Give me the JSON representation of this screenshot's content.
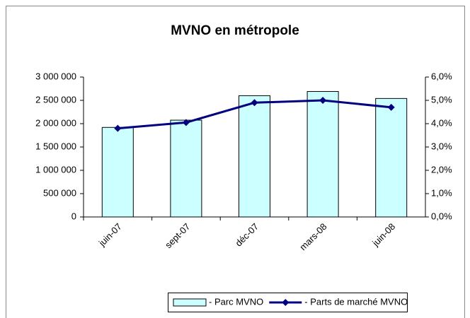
{
  "chart_data": {
    "type": "bar_line",
    "title": "MVNO en métropole",
    "categories": [
      "juin-07",
      "sept-07",
      "déc-07",
      "mars-08",
      "juin-08"
    ],
    "series": [
      {
        "name": "- Parc MVNO",
        "type": "bar",
        "color": "#ccffff",
        "values": [
          1920000,
          2075000,
          2600000,
          2690000,
          2540000
        ]
      },
      {
        "name": "- Parts de marché MVNO",
        "type": "line",
        "axis": "y2",
        "color": "#000080",
        "values": [
          3.8,
          4.05,
          4.9,
          5.0,
          4.7
        ]
      }
    ],
    "ylim": [
      0,
      3000000
    ],
    "yticks": [
      0,
      {
        "value": 500000,
        "label": "500 000"
      },
      {
        "value": 1000000,
        "label": "1 000 000"
      },
      {
        "value": 1500000,
        "label": "1 500 000"
      },
      {
        "value": 2000000,
        "label": "2 000 000"
      },
      {
        "value": 2500000,
        "label": "2 500 000"
      },
      {
        "value": 3000000,
        "label": "3 000 000"
      }
    ],
    "y2lim": [
      0,
      6
    ],
    "y2ticks": [
      {
        "value": 0,
        "label": "0,0%"
      },
      {
        "value": 1,
        "label": "1,0%"
      },
      {
        "value": 2,
        "label": "2,0%"
      },
      {
        "value": 3,
        "label": "3,0%"
      },
      {
        "value": 4,
        "label": "4,0%"
      },
      {
        "value": 5,
        "label": "5,0%"
      },
      {
        "value": 6,
        "label": "6,0%"
      }
    ],
    "legend": "bottom"
  }
}
